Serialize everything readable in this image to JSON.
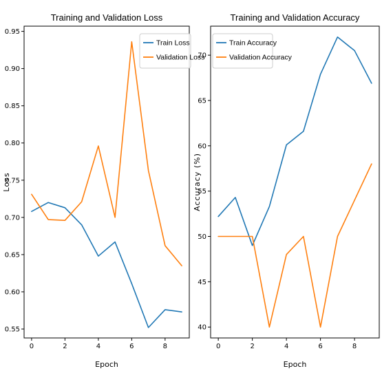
{
  "chart_data": [
    {
      "type": "line",
      "title": "Training and Validation Loss",
      "xlabel": "Epoch",
      "ylabel": "Loss",
      "x": [
        0,
        1,
        2,
        3,
        4,
        5,
        6,
        7,
        8,
        9
      ],
      "xlim": [
        -0.45,
        9.45
      ],
      "ylim": [
        0.538,
        0.957
      ],
      "xticks": [
        0,
        2,
        4,
        6,
        8
      ],
      "yticks": [
        0.55,
        0.6,
        0.65,
        0.7,
        0.75,
        0.8,
        0.85,
        0.9,
        0.95
      ],
      "ytick_labels": [
        "0.55",
        "0.60",
        "0.65",
        "0.70",
        "0.75",
        "0.80",
        "0.85",
        "0.90",
        "0.95"
      ],
      "grid": false,
      "legend": "top-right",
      "series": [
        {
          "name": "Train Loss",
          "color": "#1f77b4",
          "values": [
            0.708,
            0.72,
            0.713,
            0.69,
            0.648,
            0.667,
            0.611,
            0.552,
            0.576,
            0.573
          ]
        },
        {
          "name": "Validation Loss",
          "color": "#ff7f0e",
          "values": [
            0.731,
            0.697,
            0.696,
            0.721,
            0.796,
            0.7,
            0.936,
            0.763,
            0.662,
            0.635
          ]
        }
      ]
    },
    {
      "type": "line",
      "title": "Training and Validation Accuracy",
      "xlabel": "Epoch",
      "ylabel": "Accuracy (%)",
      "x": [
        0,
        1,
        2,
        3,
        4,
        5,
        6,
        7,
        8,
        9
      ],
      "xlim": [
        -0.45,
        9.45
      ],
      "ylim": [
        38.8,
        73.2
      ],
      "xticks": [
        0,
        2,
        4,
        6,
        8
      ],
      "yticks": [
        40,
        45,
        50,
        55,
        60,
        65,
        70
      ],
      "ytick_labels": [
        "40",
        "45",
        "50",
        "55",
        "60",
        "65",
        "70"
      ],
      "grid": false,
      "legend": "top-left",
      "series": [
        {
          "name": "Train Accuracy",
          "color": "#1f77b4",
          "values": [
            52.2,
            54.3,
            49.0,
            53.3,
            60.1,
            61.6,
            67.9,
            72.0,
            70.5,
            66.9
          ]
        },
        {
          "name": "Validation Accuracy",
          "color": "#ff7f0e",
          "values": [
            50.0,
            50.0,
            50.0,
            40.0,
            48.0,
            50.0,
            40.0,
            50.0,
            54.0,
            58.0
          ]
        }
      ]
    }
  ]
}
